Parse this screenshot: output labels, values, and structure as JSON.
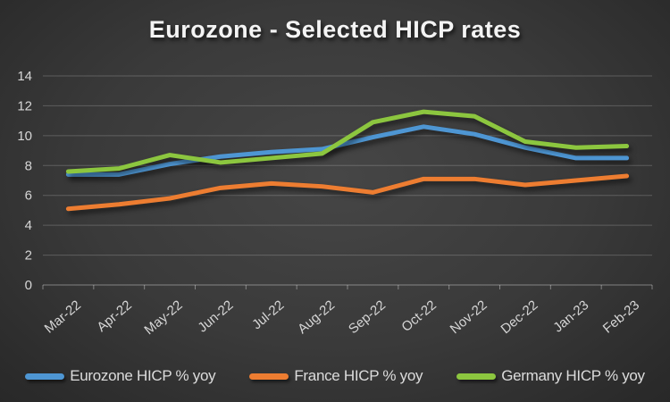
{
  "title": "Eurozone - Selected HICP rates",
  "colors": {
    "background_center": "#464646",
    "background_edge": "#232323",
    "title_text": "#f4f4f4",
    "axis_text": "#d6d6d6",
    "gridline": "rgba(255,255,255,0.20)"
  },
  "chart_data": {
    "type": "line",
    "title": "Eurozone - Selected HICP rates",
    "xlabel": "",
    "ylabel": "",
    "ylim": [
      0,
      14
    ],
    "ytick_step": 2,
    "grid": true,
    "legend_position": "bottom",
    "categories": [
      "Mar-22",
      "Apr-22",
      "May-22",
      "Jun-22",
      "Jul-22",
      "Aug-22",
      "Sep-22",
      "Oct-22",
      "Nov-22",
      "Dec-22",
      "Jan-23",
      "Feb-23"
    ],
    "series": [
      {
        "name": "Eurozone HICP % yoy",
        "color": "#4E96D3",
        "values": [
          7.4,
          7.4,
          8.1,
          8.6,
          8.9,
          9.1,
          9.9,
          10.6,
          10.1,
          9.2,
          8.5,
          8.5
        ]
      },
      {
        "name": "France HICP % yoy",
        "color": "#ED7D31",
        "values": [
          5.1,
          5.4,
          5.8,
          6.5,
          6.8,
          6.6,
          6.2,
          7.1,
          7.1,
          6.7,
          7.0,
          7.3
        ]
      },
      {
        "name": "Germany HICP % yoy",
        "color": "#8CC63F",
        "values": [
          7.6,
          7.8,
          8.7,
          8.2,
          8.5,
          8.8,
          10.9,
          11.6,
          11.3,
          9.6,
          9.2,
          9.3
        ]
      }
    ]
  }
}
